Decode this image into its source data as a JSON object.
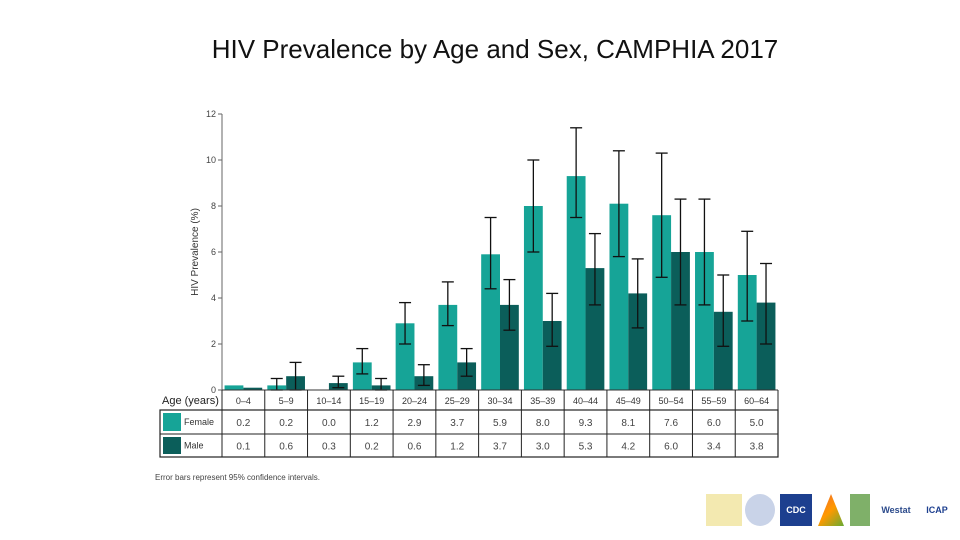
{
  "title": "HIV Prevalence by Age and Sex, CAMPHIA 2017",
  "footnote": "Error bars represent 95% confidence intervals.",
  "chart_data": {
    "type": "bar",
    "ylabel": "HIV Prevalence (%)",
    "xlabel": "Age (years)",
    "ylim": [
      0,
      12
    ],
    "yticks": [
      0,
      2,
      4,
      6,
      8,
      10,
      12
    ],
    "grid": false,
    "legend": "table-bottom",
    "categories": [
      "0–4",
      "5–9",
      "10–14",
      "15–19",
      "20–24",
      "25–29",
      "30–34",
      "35–39",
      "40–44",
      "45–49",
      "50–54",
      "55–59",
      "60–64"
    ],
    "series": [
      {
        "name": "Female",
        "color": "#16a497",
        "values": [
          0.2,
          0.2,
          0.0,
          1.2,
          2.9,
          3.7,
          5.9,
          8.0,
          9.3,
          8.1,
          7.6,
          6.0,
          5.0
        ],
        "labels": [
          "0.2",
          "0.2",
          "0.0",
          "1.2",
          "2.9",
          "3.7",
          "5.9",
          "8.0",
          "9.3",
          "8.1",
          "7.6",
          "6.0",
          "5.0"
        ],
        "ci": [
          null,
          [
            0,
            0.5
          ],
          null,
          [
            0.7,
            1.8
          ],
          [
            2.0,
            3.8
          ],
          [
            2.8,
            4.7
          ],
          [
            4.4,
            7.5
          ],
          [
            6.0,
            10.0
          ],
          [
            7.5,
            11.4
          ],
          [
            5.8,
            10.4
          ],
          [
            4.9,
            10.3
          ],
          [
            3.7,
            8.3
          ],
          [
            3.0,
            6.9
          ]
        ]
      },
      {
        "name": "Male",
        "color": "#0b5e5a",
        "values": [
          0.1,
          0.6,
          0.3,
          0.2,
          0.6,
          1.2,
          3.7,
          3.0,
          5.3,
          4.2,
          6.0,
          3.4,
          3.8
        ],
        "labels": [
          "0.1",
          "0.6",
          "0.3",
          "0.2",
          "0.6",
          "1.2",
          "3.7",
          "3.0",
          "5.3",
          "4.2",
          "6.0",
          "3.4",
          "3.8"
        ],
        "ci": [
          null,
          [
            0,
            1.2
          ],
          [
            0.1,
            0.6
          ],
          [
            0,
            0.5
          ],
          [
            0.2,
            1.1
          ],
          [
            0.6,
            1.8
          ],
          [
            2.6,
            4.8
          ],
          [
            1.9,
            4.2
          ],
          [
            3.7,
            6.8
          ],
          [
            2.7,
            5.7
          ],
          [
            3.7,
            8.3
          ],
          [
            1.9,
            5.0
          ],
          [
            2.0,
            5.5
          ]
        ]
      }
    ]
  },
  "logos": [
    "CDC",
    "Westat",
    "ICAP"
  ]
}
